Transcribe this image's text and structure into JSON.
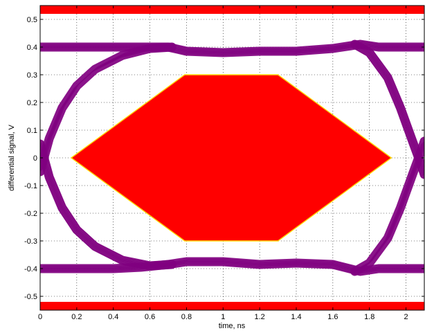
{
  "chart_data": {
    "type": "line",
    "title": "",
    "xlabel": "time, ns",
    "ylabel": "differential signal, V",
    "xlim": [
      0,
      2.1
    ],
    "ylim": [
      -0.55,
      0.55
    ],
    "x_ticks": [
      0,
      0.2,
      0.4,
      0.6,
      0.8,
      1,
      1.2,
      1.4,
      1.6,
      1.8,
      2
    ],
    "x_tick_labels": [
      "0",
      "0.2",
      "0.4",
      "0.6",
      "0.8",
      "1",
      "1.2",
      "1.4",
      "1.6",
      "1.8",
      "2"
    ],
    "y_ticks": [
      0.5,
      0.4,
      0.3,
      0.2,
      0.1,
      0,
      -0.1,
      -0.2,
      -0.3,
      -0.4,
      -0.5
    ],
    "y_tick_labels": [
      "0.5",
      "0.4",
      "0.3",
      "0.2",
      "0.1",
      "0",
      "-0.1",
      "-0.2",
      "-0.3",
      "-0.4",
      "-0.5"
    ],
    "grid": true,
    "colors": {
      "eye": "#800080",
      "mask": "#ff0000",
      "mask_edge": "#ffd700",
      "bands": "#ff0000"
    },
    "mask_polygon": [
      [
        0.17,
        0
      ],
      [
        0.79,
        0.3
      ],
      [
        1.3,
        0.3
      ],
      [
        1.92,
        0
      ],
      [
        1.3,
        -0.3
      ],
      [
        0.79,
        -0.3
      ]
    ],
    "limit_bands": [
      {
        "y_from": 0.52,
        "y_to": 0.55
      },
      {
        "y_from": -0.55,
        "y_to": -0.52
      }
    ],
    "eye_series": [
      {
        "role": "top-rail",
        "x": [
          0,
          0.2,
          0.4,
          0.55,
          0.7,
          0.8,
          1.0,
          1.2,
          1.4,
          1.6,
          1.75,
          1.85,
          2.1
        ],
        "y": [
          0.4,
          0.4,
          0.4,
          0.4,
          0.4,
          0.385,
          0.38,
          0.385,
          0.385,
          0.395,
          0.41,
          0.4,
          0.4
        ]
      },
      {
        "role": "bottom-rail",
        "x": [
          0,
          0.2,
          0.4,
          0.55,
          0.7,
          0.8,
          1.0,
          1.2,
          1.4,
          1.6,
          1.75,
          1.85,
          2.1
        ],
        "y": [
          -0.4,
          -0.4,
          -0.4,
          -0.395,
          -0.385,
          -0.375,
          -0.375,
          -0.385,
          -0.38,
          -0.385,
          -0.41,
          -0.4,
          -0.4
        ]
      },
      {
        "role": "left-rising",
        "x": [
          0,
          0.05,
          0.12,
          0.2,
          0.3,
          0.45,
          0.6,
          0.72
        ],
        "y": [
          -0.05,
          0.07,
          0.18,
          0.26,
          0.32,
          0.37,
          0.395,
          0.4
        ]
      },
      {
        "role": "left-falling",
        "x": [
          0,
          0.05,
          0.12,
          0.2,
          0.3,
          0.45,
          0.6,
          0.72
        ],
        "y": [
          0.05,
          -0.07,
          -0.18,
          -0.26,
          -0.32,
          -0.37,
          -0.39,
          -0.385
        ]
      },
      {
        "role": "right-falling",
        "x": [
          1.72,
          1.8,
          1.9,
          1.97,
          2.03,
          2.08,
          2.1
        ],
        "y": [
          0.41,
          0.38,
          0.29,
          0.18,
          0.07,
          -0.02,
          -0.06
        ]
      },
      {
        "role": "right-rising",
        "x": [
          1.72,
          1.8,
          1.9,
          1.97,
          2.03,
          2.08,
          2.1
        ],
        "y": [
          -0.41,
          -0.38,
          -0.29,
          -0.18,
          -0.07,
          0.02,
          0.06
        ]
      }
    ]
  }
}
